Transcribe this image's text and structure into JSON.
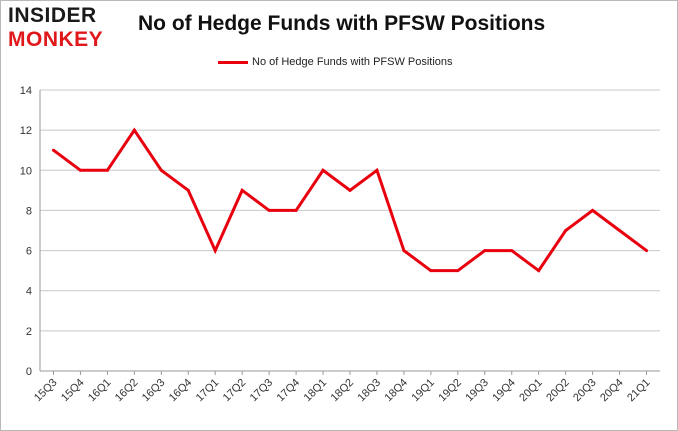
{
  "logo": {
    "line1": "INSIDER",
    "line2": "MONKEY"
  },
  "chart_data": {
    "type": "line",
    "title": "No of Hedge Funds with PFSW Positions",
    "xlabel": "",
    "ylabel": "",
    "categories": [
      "15Q3",
      "15Q4",
      "16Q1",
      "16Q2",
      "16Q3",
      "16Q4",
      "17Q1",
      "17Q2",
      "17Q3",
      "17Q4",
      "18Q1",
      "18Q2",
      "18Q3",
      "18Q4",
      "19Q1",
      "19Q2",
      "19Q3",
      "19Q4",
      "20Q1",
      "20Q2",
      "20Q3",
      "20Q4",
      "21Q1"
    ],
    "series": [
      {
        "name": "No of Hedge Funds with PFSW Positions",
        "values": [
          11,
          10,
          10,
          12,
          10,
          9,
          6,
          9,
          8,
          8,
          10,
          9,
          10,
          6,
          5,
          5,
          6,
          6,
          5,
          7,
          8,
          7,
          6
        ],
        "color": "#e8000f"
      }
    ],
    "ylim": [
      0,
      14
    ],
    "yticks": [
      0,
      2,
      4,
      6,
      8,
      10,
      12,
      14
    ],
    "grid": true,
    "legend": "top-center"
  }
}
